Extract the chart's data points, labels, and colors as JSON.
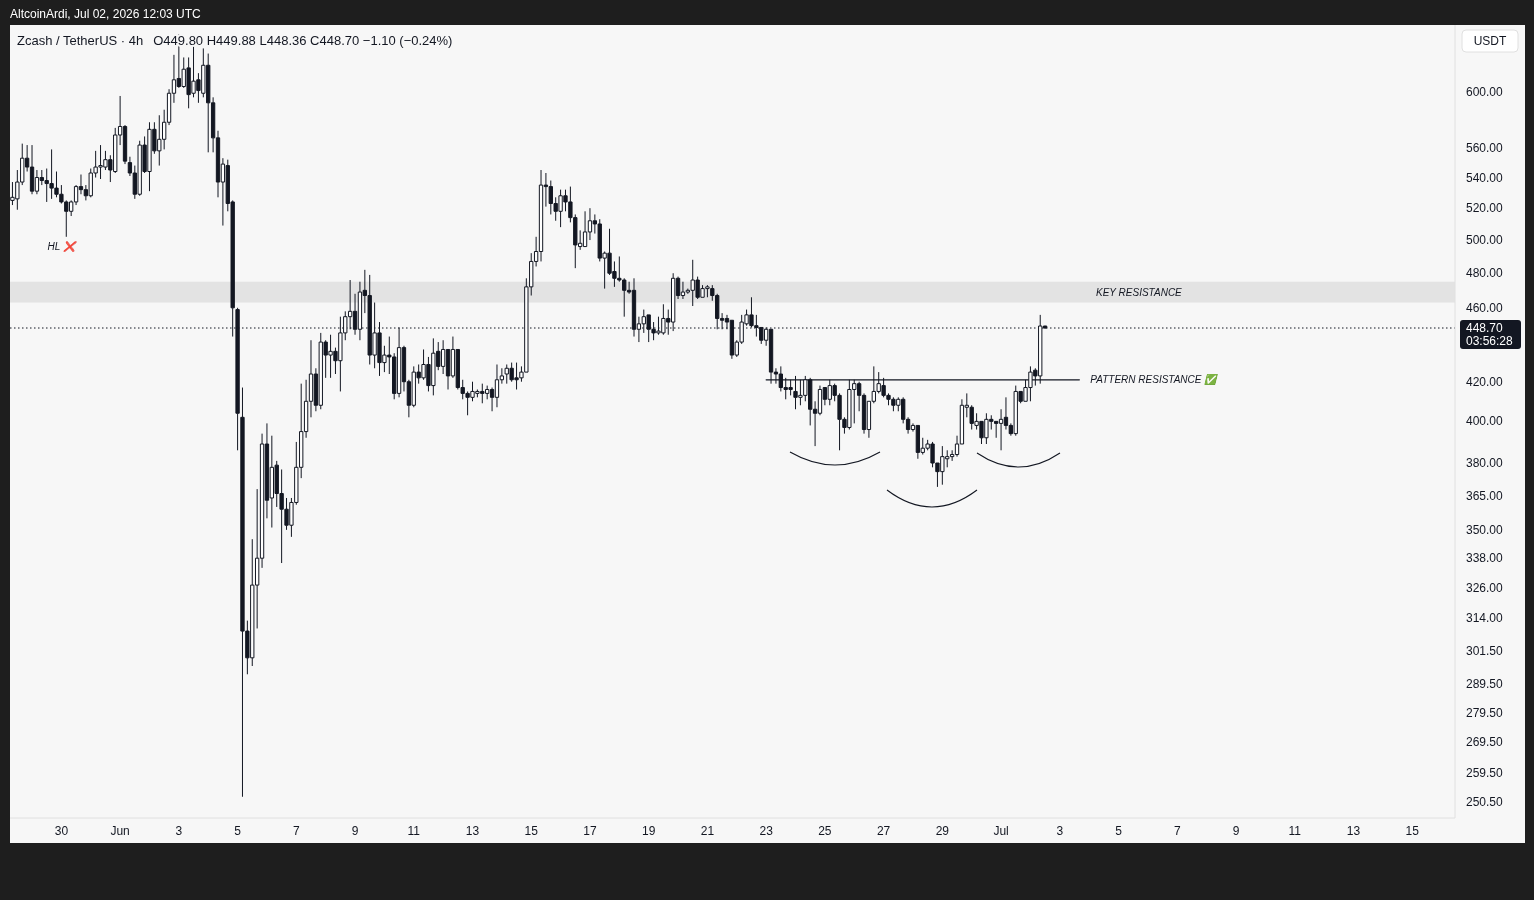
{
  "chart_data": {
    "type": "candlestick",
    "title": "Zcash / TetherUS · 4h",
    "subtitle": "O449.80 H449.88 L448.36 C448.70 −1.10 (−0.24%)",
    "ylabel": "USDT",
    "color": "#131722",
    "log": true,
    "grid": false,
    "xlim": [
      "2026-05-28T06:00",
      "2026-07-16T11:00"
    ],
    "ylim": [
      245.5,
      651.5
    ],
    "xticks": [
      {
        "value": "2026-05-30",
        "label": "30"
      },
      {
        "value": "2026-06-01",
        "label": "Jun"
      },
      {
        "value": "2026-06-03",
        "label": "3"
      },
      {
        "value": "2026-06-05",
        "label": "5"
      },
      {
        "value": "2026-06-07",
        "label": "7"
      },
      {
        "value": "2026-06-09",
        "label": "9"
      },
      {
        "value": "2026-06-11",
        "label": "11"
      },
      {
        "value": "2026-06-13",
        "label": "13"
      },
      {
        "value": "2026-06-15",
        "label": "15"
      },
      {
        "value": "2026-06-17",
        "label": "17"
      },
      {
        "value": "2026-06-19",
        "label": "19"
      },
      {
        "value": "2026-06-21",
        "label": "21"
      },
      {
        "value": "2026-06-23",
        "label": "23"
      },
      {
        "value": "2026-06-25",
        "label": "25"
      },
      {
        "value": "2026-06-27",
        "label": "27"
      },
      {
        "value": "2026-06-29",
        "label": "29"
      },
      {
        "value": "2026-07-01",
        "label": "Jul"
      },
      {
        "value": "2026-07-03",
        "label": "3"
      },
      {
        "value": "2026-07-05",
        "label": "5"
      },
      {
        "value": "2026-07-07",
        "label": "7"
      },
      {
        "value": "2026-07-09",
        "label": "9"
      },
      {
        "value": "2026-07-11",
        "label": "11"
      },
      {
        "value": "2026-07-13",
        "label": "13"
      },
      {
        "value": "2026-07-15",
        "label": "15"
      }
    ],
    "yticks": [
      {
        "value": 250.5,
        "label": "250.50"
      },
      {
        "value": 259.5,
        "label": "259.50"
      },
      {
        "value": 269.5,
        "label": "269.50"
      },
      {
        "value": 279.5,
        "label": "279.50"
      },
      {
        "value": 289.5,
        "label": "289.50"
      },
      {
        "value": 301.5,
        "label": "301.50"
      },
      {
        "value": 314,
        "label": "314.00"
      },
      {
        "value": 326,
        "label": "326.00"
      },
      {
        "value": 338,
        "label": "338.00"
      },
      {
        "value": 350,
        "label": "350.00"
      },
      {
        "value": 365,
        "label": "365.00"
      },
      {
        "value": 380,
        "label": "380.00"
      },
      {
        "value": 400,
        "label": "400.00"
      },
      {
        "value": 420,
        "label": "420.00"
      },
      {
        "value": 460,
        "label": "460.00"
      },
      {
        "value": 480,
        "label": "480.00"
      },
      {
        "value": 500,
        "label": "500.00"
      },
      {
        "value": 520,
        "label": "520.00"
      },
      {
        "value": 540,
        "label": "540.00"
      },
      {
        "value": 560,
        "label": "560.00"
      },
      {
        "value": 600,
        "label": "600.00"
      }
    ],
    "x": [
      "2026-05-28T08:00",
      "2026-05-28T12:00",
      "2026-05-28T16:00",
      "2026-05-28T20:00",
      "2026-05-29T00:00",
      "2026-05-29T04:00",
      "2026-05-29T08:00",
      "2026-05-29T12:00",
      "2026-05-29T16:00",
      "2026-05-29T20:00",
      "2026-05-30T00:00",
      "2026-05-30T04:00",
      "2026-05-30T08:00",
      "2026-05-30T12:00",
      "2026-05-30T16:00",
      "2026-05-30T20:00",
      "2026-05-31T00:00",
      "2026-05-31T04:00",
      "2026-05-31T08:00",
      "2026-05-31T12:00",
      "2026-05-31T16:00",
      "2026-05-31T20:00",
      "2026-06-01T00:00",
      "2026-06-01T04:00",
      "2026-06-01T08:00",
      "2026-06-01T12:00",
      "2026-06-01T16:00",
      "2026-06-01T20:00",
      "2026-06-02T00:00",
      "2026-06-02T04:00",
      "2026-06-02T08:00",
      "2026-06-02T12:00",
      "2026-06-02T16:00",
      "2026-06-02T20:00",
      "2026-06-03T00:00",
      "2026-06-03T04:00",
      "2026-06-03T08:00",
      "2026-06-03T12:00",
      "2026-06-03T16:00",
      "2026-06-03T20:00",
      "2026-06-04T00:00",
      "2026-06-04T04:00",
      "2026-06-04T08:00",
      "2026-06-04T12:00",
      "2026-06-04T16:00",
      "2026-06-04T20:00",
      "2026-06-05T00:00",
      "2026-06-05T04:00",
      "2026-06-05T08:00",
      "2026-06-05T12:00",
      "2026-06-05T16:00",
      "2026-06-05T20:00",
      "2026-06-06T00:00",
      "2026-06-06T04:00",
      "2026-06-06T08:00",
      "2026-06-06T12:00",
      "2026-06-06T16:00",
      "2026-06-06T20:00",
      "2026-06-07T00:00",
      "2026-06-07T04:00",
      "2026-06-07T08:00",
      "2026-06-07T12:00",
      "2026-06-07T16:00",
      "2026-06-07T20:00",
      "2026-06-08T00:00",
      "2026-06-08T04:00",
      "2026-06-08T08:00",
      "2026-06-08T12:00",
      "2026-06-08T16:00",
      "2026-06-08T20:00",
      "2026-06-09T00:00",
      "2026-06-09T04:00",
      "2026-06-09T08:00",
      "2026-06-09T12:00",
      "2026-06-09T16:00",
      "2026-06-09T20:00",
      "2026-06-10T00:00",
      "2026-06-10T04:00",
      "2026-06-10T08:00",
      "2026-06-10T12:00",
      "2026-06-10T16:00",
      "2026-06-10T20:00",
      "2026-06-11T00:00",
      "2026-06-11T04:00",
      "2026-06-11T08:00",
      "2026-06-11T12:00",
      "2026-06-11T16:00",
      "2026-06-11T20:00",
      "2026-06-12T00:00",
      "2026-06-12T04:00",
      "2026-06-12T08:00",
      "2026-06-12T12:00",
      "2026-06-12T16:00",
      "2026-06-12T20:00",
      "2026-06-13T00:00",
      "2026-06-13T04:00",
      "2026-06-13T08:00",
      "2026-06-13T12:00",
      "2026-06-13T16:00",
      "2026-06-13T20:00",
      "2026-06-14T00:00",
      "2026-06-14T04:00",
      "2026-06-14T08:00",
      "2026-06-14T12:00",
      "2026-06-14T16:00",
      "2026-06-14T20:00",
      "2026-06-15T00:00",
      "2026-06-15T04:00",
      "2026-06-15T08:00",
      "2026-06-15T12:00",
      "2026-06-15T16:00",
      "2026-06-15T20:00",
      "2026-06-16T00:00",
      "2026-06-16T04:00",
      "2026-06-16T08:00",
      "2026-06-16T12:00",
      "2026-06-16T16:00",
      "2026-06-16T20:00",
      "2026-06-17T00:00",
      "2026-06-17T04:00",
      "2026-06-17T08:00",
      "2026-06-17T12:00",
      "2026-06-17T16:00",
      "2026-06-17T20:00",
      "2026-06-18T00:00",
      "2026-06-18T04:00",
      "2026-06-18T08:00",
      "2026-06-18T12:00",
      "2026-06-18T16:00",
      "2026-06-18T20:00",
      "2026-06-19T00:00",
      "2026-06-19T04:00",
      "2026-06-19T08:00",
      "2026-06-19T12:00",
      "2026-06-19T16:00",
      "2026-06-19T20:00",
      "2026-06-20T00:00",
      "2026-06-20T04:00",
      "2026-06-20T08:00",
      "2026-06-20T12:00",
      "2026-06-20T16:00",
      "2026-06-20T20:00",
      "2026-06-21T00:00",
      "2026-06-21T04:00",
      "2026-06-21T08:00",
      "2026-06-21T12:00",
      "2026-06-21T16:00",
      "2026-06-21T20:00",
      "2026-06-22T00:00",
      "2026-06-22T04:00",
      "2026-06-22T08:00",
      "2026-06-22T12:00",
      "2026-06-22T16:00",
      "2026-06-22T20:00",
      "2026-06-23T00:00",
      "2026-06-23T04:00",
      "2026-06-23T08:00",
      "2026-06-23T12:00",
      "2026-06-23T16:00",
      "2026-06-23T20:00",
      "2026-06-24T00:00",
      "2026-06-24T04:00",
      "2026-06-24T08:00",
      "2026-06-24T12:00",
      "2026-06-24T16:00",
      "2026-06-24T20:00",
      "2026-06-25T00:00",
      "2026-06-25T04:00",
      "2026-06-25T08:00",
      "2026-06-25T12:00",
      "2026-06-25T16:00",
      "2026-06-25T20:00",
      "2026-06-26T00:00",
      "2026-06-26T04:00",
      "2026-06-26T08:00",
      "2026-06-26T12:00",
      "2026-06-26T16:00",
      "2026-06-26T20:00",
      "2026-06-27T00:00",
      "2026-06-27T04:00",
      "2026-06-27T08:00",
      "2026-06-27T12:00",
      "2026-06-27T16:00",
      "2026-06-27T20:00",
      "2026-06-28T00:00",
      "2026-06-28T04:00",
      "2026-06-28T08:00",
      "2026-06-28T12:00",
      "2026-06-28T16:00",
      "2026-06-28T20:00",
      "2026-06-29T00:00",
      "2026-06-29T04:00",
      "2026-06-29T08:00",
      "2026-06-29T12:00",
      "2026-06-29T16:00",
      "2026-06-29T20:00",
      "2026-06-30T00:00",
      "2026-06-30T04:00",
      "2026-06-30T08:00",
      "2026-06-30T12:00",
      "2026-06-30T16:00",
      "2026-06-30T20:00",
      "2026-07-01T00:00",
      "2026-07-01T04:00",
      "2026-07-01T08:00",
      "2026-07-01T12:00",
      "2026-07-01T16:00",
      "2026-07-01T20:00",
      "2026-07-02T00:00",
      "2026-07-02T04:00",
      "2026-07-02T08:00",
      "2026-07-02T12:00"
    ],
    "ohlc": [
      [
        525,
        537,
        522,
        527
      ],
      [
        526,
        545,
        519,
        537
      ],
      [
        537,
        563,
        535,
        553
      ],
      [
        553,
        562,
        544,
        547
      ],
      [
        547,
        562,
        529,
        531
      ],
      [
        531,
        545,
        529,
        540
      ],
      [
        540,
        545,
        535,
        538
      ],
      [
        538,
        546,
        524,
        536
      ],
      [
        536,
        559,
        526,
        533
      ],
      [
        533,
        544,
        527,
        529
      ],
      [
        529,
        535,
        523,
        524
      ],
      [
        524,
        525,
        502,
        518
      ],
      [
        518,
        525,
        515,
        524
      ],
      [
        524,
        535,
        522,
        534
      ],
      [
        534,
        542,
        529,
        532
      ],
      [
        532,
        535,
        525,
        528
      ],
      [
        528,
        546,
        527,
        543
      ],
      [
        543,
        558,
        540,
        547
      ],
      [
        547,
        562,
        539,
        548
      ],
      [
        547,
        558,
        545,
        552
      ],
      [
        552,
        555,
        537,
        545
      ],
      [
        544,
        574,
        543,
        569
      ],
      [
        569,
        597,
        562,
        575
      ],
      [
        575,
        576,
        549,
        551
      ],
      [
        550,
        554,
        541,
        543
      ],
      [
        543,
        548,
        526,
        529
      ],
      [
        529,
        565,
        528,
        562
      ],
      [
        562,
        568,
        543,
        544
      ],
      [
        544,
        578,
        531,
        573
      ],
      [
        573,
        578,
        556,
        558
      ],
      [
        558,
        583,
        548,
        566
      ],
      [
        566,
        587,
        559,
        578
      ],
      [
        578,
        602,
        576,
        599
      ],
      [
        599,
        628,
        592,
        609
      ],
      [
        610,
        644,
        603,
        604
      ],
      [
        604,
        626,
        603,
        617
      ],
      [
        618,
        626,
        588,
        598
      ],
      [
        599,
        635,
        596,
        608
      ],
      [
        609,
        614,
        592,
        601
      ],
      [
        599,
        633,
        596,
        620
      ],
      [
        620,
        629,
        557,
        592
      ],
      [
        592,
        596,
        557,
        567
      ],
      [
        567,
        572,
        527,
        537
      ],
      [
        537,
        553,
        509,
        549
      ],
      [
        548,
        552,
        518,
        523
      ],
      [
        524,
        525,
        444,
        460
      ],
      [
        459,
        460,
        386,
        404
      ],
      [
        402,
        417,
        252,
        309
      ],
      [
        309,
        313,
        293,
        299
      ],
      [
        299,
        346,
        296,
        327
      ],
      [
        327,
        368,
        310,
        338
      ],
      [
        338,
        394,
        334,
        389
      ],
      [
        389,
        399,
        355,
        363
      ],
      [
        364,
        393,
        351,
        378
      ],
      [
        379,
        381,
        360,
        366
      ],
      [
        366,
        377,
        336,
        359
      ],
      [
        359,
        364,
        350,
        352
      ],
      [
        352,
        364,
        347,
        362
      ],
      [
        362,
        390,
        361,
        378
      ],
      [
        378,
        419,
        373,
        395
      ],
      [
        395,
        421,
        392,
        410
      ],
      [
        410,
        442,
        402,
        424
      ],
      [
        424,
        427,
        405,
        408
      ],
      [
        408,
        446,
        406,
        441
      ],
      [
        441,
        442,
        422,
        434
      ],
      [
        434,
        445,
        422,
        436
      ],
      [
        436,
        438,
        424,
        431
      ],
      [
        431,
        455,
        415,
        446
      ],
      [
        446,
        458,
        442,
        455
      ],
      [
        455,
        476,
        448,
        458
      ],
      [
        458,
        468,
        445,
        448
      ],
      [
        448,
        475,
        442,
        469
      ],
      [
        470,
        482,
        457,
        467
      ],
      [
        467,
        479,
        429,
        434
      ],
      [
        434,
        463,
        427,
        446
      ],
      [
        446,
        452,
        423,
        430
      ],
      [
        430,
        439,
        425,
        434
      ],
      [
        434,
        444,
        424,
        433
      ],
      [
        433,
        435,
        411,
        414
      ],
      [
        414,
        449,
        412,
        438
      ],
      [
        438,
        439,
        415,
        420
      ],
      [
        420,
        421,
        402,
        408
      ],
      [
        408,
        428,
        407,
        425
      ],
      [
        425,
        429,
        419,
        422
      ],
      [
        422,
        437,
        421,
        429
      ],
      [
        429,
        433,
        415,
        418
      ],
      [
        418,
        443,
        413,
        435
      ],
      [
        436,
        441,
        426,
        428
      ],
      [
        428,
        442,
        424,
        437
      ],
      [
        437,
        437,
        416,
        423
      ],
      [
        423,
        444,
        422,
        437
      ],
      [
        437,
        437,
        416,
        417
      ],
      [
        417,
        421,
        411,
        414
      ],
      [
        414,
        415,
        403,
        412
      ],
      [
        412,
        420,
        410,
        415
      ],
      [
        414,
        416,
        412,
        415
      ],
      [
        415,
        419,
        409,
        414
      ],
      [
        414,
        418,
        411,
        416
      ],
      [
        416,
        417,
        405,
        412
      ],
      [
        412,
        429,
        407,
        421
      ],
      [
        421,
        427,
        419,
        423
      ],
      [
        424,
        429,
        419,
        427
      ],
      [
        427,
        430,
        420,
        421
      ],
      [
        422,
        430,
        416,
        421
      ],
      [
        422,
        428,
        420,
        425
      ],
      [
        425,
        477,
        425,
        472
      ],
      [
        472,
        492,
        467,
        487
      ],
      [
        487,
        502,
        484,
        493
      ],
      [
        493,
        545,
        487,
        535
      ],
      [
        535,
        543,
        521,
        534
      ],
      [
        534,
        538,
        516,
        523
      ],
      [
        523,
        527,
        512,
        518
      ],
      [
        518,
        532,
        508,
        528
      ],
      [
        528,
        532,
        518,
        524
      ],
      [
        524,
        534,
        511,
        514
      ],
      [
        514,
        516,
        483,
        497
      ],
      [
        496,
        506,
        494,
        498
      ],
      [
        496,
        518,
        496,
        505
      ],
      [
        505,
        520,
        500,
        512
      ],
      [
        512,
        516,
        504,
        510
      ],
      [
        510,
        513,
        487,
        489
      ],
      [
        489,
        493,
        471,
        492
      ],
      [
        492,
        507,
        479,
        480
      ],
      [
        481,
        487,
        472,
        477
      ],
      [
        477,
        490,
        475,
        476
      ],
      [
        476,
        477,
        455,
        470
      ],
      [
        470,
        475,
        468,
        469
      ],
      [
        470,
        477,
        444,
        448
      ],
      [
        448,
        455,
        441,
        451
      ],
      [
        451,
        459,
        446,
        455
      ],
      [
        456,
        456,
        441,
        448
      ],
      [
        448,
        452,
        442,
        446
      ],
      [
        446,
        455,
        445,
        447
      ],
      [
        446,
        462,
        445,
        454
      ],
      [
        454,
        459,
        445,
        452
      ],
      [
        452,
        480,
        447,
        477
      ],
      [
        477,
        478,
        465,
        467
      ],
      [
        467,
        475,
        465,
        469
      ],
      [
        469,
        471,
        468,
        470
      ],
      [
        470,
        488,
        461,
        476
      ],
      [
        476,
        478,
        465,
        466
      ],
      [
        466,
        473,
        466,
        471
      ],
      [
        471,
        473,
        466,
        472
      ],
      [
        471,
        473,
        464,
        467
      ],
      [
        467,
        468,
        448,
        454
      ],
      [
        454,
        457,
        448,
        453
      ],
      [
        454,
        456,
        448,
        452
      ],
      [
        453,
        453,
        432,
        434
      ],
      [
        434,
        442,
        433,
        441
      ],
      [
        441,
        456,
        440,
        452
      ],
      [
        451,
        459,
        450,
        456
      ],
      [
        456,
        466,
        449,
        450
      ],
      [
        450,
        456,
        444,
        449
      ],
      [
        449,
        449,
        440,
        442
      ],
      [
        442,
        449,
        439,
        448
      ],
      [
        448,
        448,
        419,
        425
      ],
      [
        425,
        427,
        419,
        424
      ],
      [
        424,
        428,
        415,
        417
      ],
      [
        417,
        422,
        411,
        416
      ],
      [
        417,
        421,
        413,
        416
      ],
      [
        415,
        423,
        406,
        412
      ],
      [
        412,
        421,
        408,
        413
      ],
      [
        413,
        423,
        410,
        421
      ],
      [
        421,
        422,
        398,
        406
      ],
      [
        406,
        410,
        388,
        404
      ],
      [
        404,
        418,
        403,
        416
      ],
      [
        417,
        417,
        408,
        411
      ],
      [
        411,
        421,
        408,
        418
      ],
      [
        418,
        419,
        410,
        413
      ],
      [
        413,
        414,
        386,
        401
      ],
      [
        401,
        402,
        394,
        397
      ],
      [
        397,
        421,
        396,
        416
      ],
      [
        416,
        421,
        399,
        419
      ],
      [
        419,
        420,
        405,
        413
      ],
      [
        413,
        414,
        394,
        396
      ],
      [
        396,
        410,
        392,
        410
      ],
      [
        410,
        428,
        409,
        415
      ],
      [
        415,
        425,
        414,
        419
      ],
      [
        418,
        422,
        412,
        413
      ],
      [
        413,
        414,
        408,
        411
      ],
      [
        411,
        412,
        405,
        408
      ],
      [
        408,
        412,
        405,
        411
      ],
      [
        411,
        412,
        399,
        401
      ],
      [
        401,
        402,
        394,
        396
      ],
      [
        396,
        399,
        395,
        398
      ],
      [
        398,
        398,
        382,
        385
      ],
      [
        385,
        392,
        384,
        387
      ],
      [
        387,
        391,
        386,
        389
      ],
      [
        389,
        390,
        378,
        380
      ],
      [
        380,
        380,
        369,
        376
      ],
      [
        376,
        388,
        370,
        383
      ],
      [
        382,
        386,
        378,
        383
      ],
      [
        383,
        386,
        381,
        384
      ],
      [
        384,
        393,
        383,
        389
      ],
      [
        389,
        411,
        389,
        408
      ],
      [
        407,
        414,
        402,
        408
      ],
      [
        407,
        408,
        396,
        399
      ],
      [
        398,
        404,
        396,
        400
      ],
      [
        400,
        400,
        389,
        392
      ],
      [
        392,
        404,
        389,
        401
      ],
      [
        401,
        403,
        396,
        400
      ],
      [
        400,
        400,
        392,
        399
      ],
      [
        399,
        406,
        386,
        401
      ],
      [
        402,
        412,
        396,
        398
      ],
      [
        398,
        399,
        393,
        394
      ],
      [
        394,
        418,
        393,
        415
      ],
      [
        415,
        415,
        409,
        410
      ],
      [
        410,
        421,
        410,
        417
      ],
      [
        417,
        428,
        410,
        425
      ],
      [
        426,
        427,
        418,
        423
      ],
      [
        423,
        456,
        419,
        449.8
      ],
      [
        449.8,
        449.88,
        448.36,
        448.7
      ]
    ],
    "series": [
      {
        "type": "line",
        "name": "PATTERN RESISTANCE ✅",
        "color": "#131722",
        "x": [
          "2026-06-23T00:00",
          "2026-07-03T16:00"
        ],
        "values": [
          421,
          421
        ]
      }
    ],
    "bands": [
      {
        "axis": "y",
        "from": 463,
        "to": 475,
        "label": "KEY RESISTANCE",
        "color": "#e3e3e3"
      }
    ],
    "ref_lines": [
      {
        "axis": "y",
        "value": 448.7,
        "label": "448.70\n03:56:28",
        "line_style": "dotted",
        "color": "#131722"
      }
    ],
    "annotations": [
      "AltcoinArdi, Jul 02, 2026 12:03 UTC",
      {
        "text": "HL ❌",
        "x": "2026-05-30T04:00",
        "y": 502
      }
    ]
  }
}
